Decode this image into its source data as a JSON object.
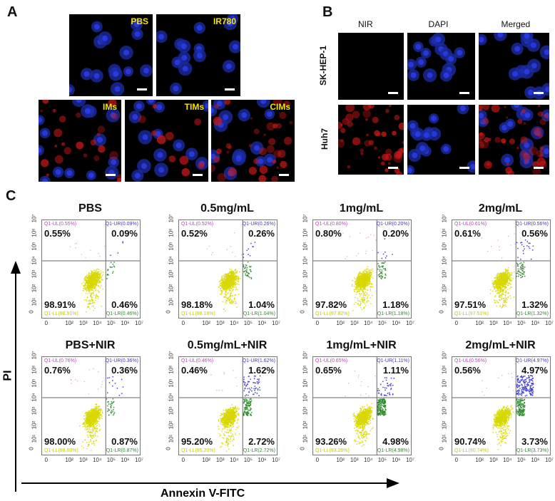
{
  "panel_a": {
    "label": "A",
    "images": [
      {
        "label": "PBS"
      },
      {
        "label": "IR780"
      },
      {
        "label": "IMs"
      },
      {
        "label": "TIMs"
      },
      {
        "label": "CIMs"
      }
    ]
  },
  "panel_b": {
    "label": "B",
    "columns": [
      "NIR",
      "DAPI",
      "Merged"
    ],
    "rows": [
      "SK-HEP-1",
      "Huh7"
    ]
  },
  "panel_c": {
    "label": "C",
    "y_axis_label": "PI",
    "x_axis_label": "Annexin V-FITC",
    "x_ticks": [
      "0",
      "10²",
      "10³",
      "10⁴",
      "10⁵",
      "10⁶",
      "10⁷"
    ],
    "y_ticks": [
      "0",
      "10¹",
      "10²",
      "10³",
      "10⁴",
      "10⁵",
      "10⁶",
      "10⁷"
    ],
    "colors": {
      "LL": "#d8d800",
      "LR": "#2e8b2e",
      "UR": "#3a3ad0",
      "UL": "#c040c0"
    }
  },
  "chart_data": [
    {
      "type": "scatter",
      "title": "PBS",
      "UL": "0.55%",
      "UR": "0.09%",
      "LL": "98.91%",
      "LR": "0.46%"
    },
    {
      "type": "scatter",
      "title": "0.5mg/mL",
      "UL": "0.52%",
      "UR": "0.26%",
      "LL": "98.18%",
      "LR": "1.04%"
    },
    {
      "type": "scatter",
      "title": "1mg/mL",
      "UL": "0.80%",
      "UR": "0.20%",
      "LL": "97.82%",
      "LR": "1.18%"
    },
    {
      "type": "scatter",
      "title": "2mg/mL",
      "UL": "0.61%",
      "UR": "0.56%",
      "LL": "97.51%",
      "LR": "1.32%"
    },
    {
      "type": "scatter",
      "title": "PBS+NIR",
      "UL": "0.76%",
      "UR": "0.36%",
      "LL": "98.00%",
      "LR": "0.87%"
    },
    {
      "type": "scatter",
      "title": "0.5mg/mL+NIR",
      "UL": "0.46%",
      "UR": "1.62%",
      "LL": "95.20%",
      "LR": "2.72%"
    },
    {
      "type": "scatter",
      "title": "1mg/mL+NIR",
      "UL": "0.65%",
      "UR": "1.11%",
      "LL": "93.26%",
      "LR": "4.98%"
    },
    {
      "type": "scatter",
      "title": "2mg/mL+NIR",
      "UL": "0.56%",
      "UR": "4.97%",
      "LL": "90.74%",
      "LR": "3.73%"
    }
  ]
}
